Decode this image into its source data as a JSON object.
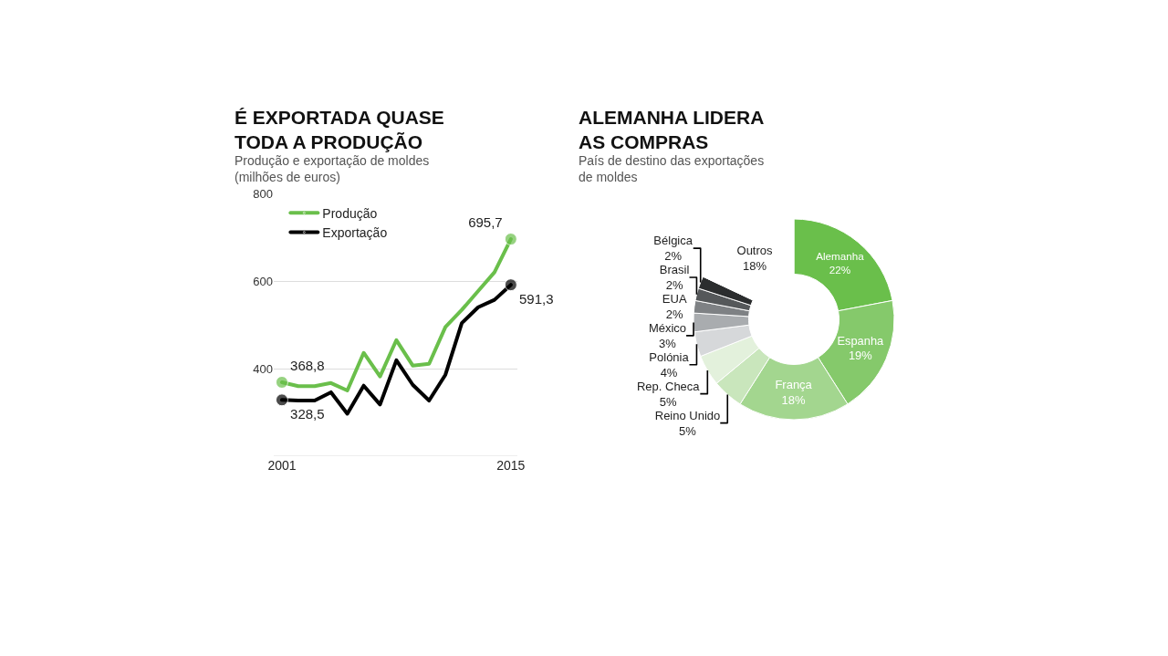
{
  "chart_data": [
    {
      "type": "line",
      "title": "É EXPORTADA QUASE\nTODA A PRODUÇÃO",
      "subtitle": "Produção e exportação de moldes\n(milhões de euros)",
      "x": [
        2001,
        2002,
        2003,
        2004,
        2005,
        2006,
        2007,
        2008,
        2009,
        2010,
        2011,
        2012,
        2013,
        2014,
        2015
      ],
      "series": [
        {
          "name": "Produção",
          "color": "#6abf4b",
          "values": [
            368.8,
            360,
            360,
            367,
            350,
            436,
            382,
            465,
            407,
            411,
            495,
            534,
            577,
            620,
            695.7
          ],
          "value_labels": [
            "368,8",
            null,
            null,
            null,
            null,
            null,
            null,
            null,
            null,
            null,
            null,
            null,
            null,
            null,
            "695,7"
          ]
        },
        {
          "name": "Exportação",
          "color": "#000000",
          "values": [
            328.5,
            327,
            327,
            346,
            297,
            361,
            318,
            419,
            363,
            327,
            386,
            504,
            540,
            557,
            591.3
          ],
          "value_labels": [
            "328,5",
            null,
            null,
            null,
            null,
            null,
            null,
            null,
            null,
            null,
            null,
            null,
            null,
            null,
            "591,3"
          ]
        }
      ],
      "xlim": [
        2000.5,
        2015.4
      ],
      "xticks": [
        2001,
        2015
      ],
      "ylim": [
        200,
        800
      ],
      "yticks": [
        400,
        600,
        800
      ],
      "grid": "y",
      "legend": "top left",
      "marker": "none",
      "line_style": "solid"
    },
    {
      "type": "donut",
      "title": "ALEMANHA LIDERA\nAS COMPRAS",
      "subtitle": "País de destino das exportações\nde moldes",
      "categories": [
        "Alemanha",
        "Espanha",
        "França",
        "Reino Unido",
        "Rep. Checa",
        "Polónia",
        "México",
        "EUA",
        "Brasil",
        "Bélgica",
        "Outros"
      ],
      "values": [
        22,
        19,
        18,
        5,
        5,
        4,
        3,
        2,
        2,
        2,
        18
      ],
      "value_labels": [
        "22%",
        "19%",
        "18%",
        "5%",
        "5%",
        "4%",
        "3%",
        "2%",
        "2%",
        "2%",
        "18%"
      ],
      "colors": [
        "#6abf4b",
        "#85c96b",
        "#a3d68f",
        "#c9e6bc",
        "#e3f1dc",
        "#d6d8da",
        "#a9acaf",
        "#7e8184",
        "#55585a",
        "#2b2d2e",
        "#ffffff"
      ]
    }
  ]
}
